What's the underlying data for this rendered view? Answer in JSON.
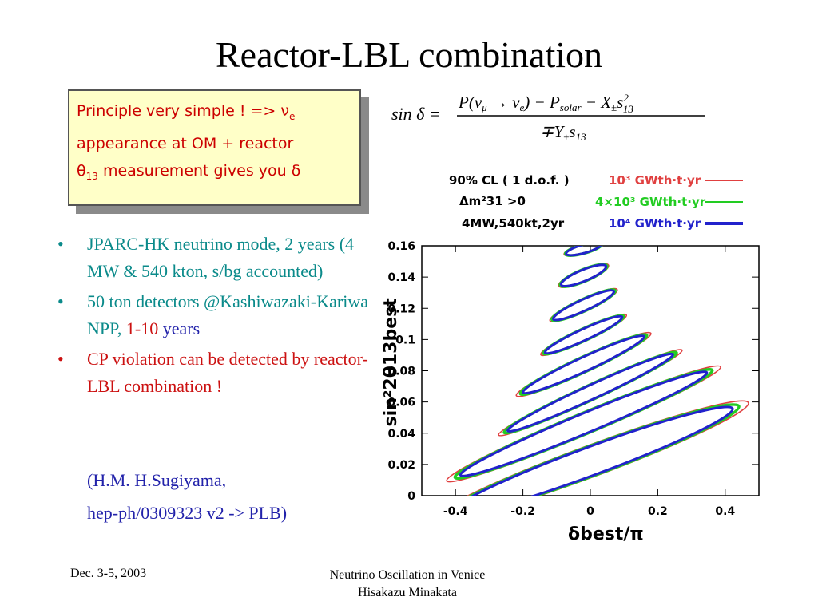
{
  "slide": {
    "title": "Reactor-LBL combination",
    "box": {
      "line1": "Principle very simple ! => ",
      "nu": "ν",
      "nu_sub": "e",
      "line2": "appearance at OM + reactor",
      "theta": "θ",
      "theta_sub": "13",
      "line3": " measurement gives you δ"
    },
    "formula": {
      "lhs": "sin δ =",
      "num": "P(νμ → νe) − Psolar − X±s",
      "den": "∓Y±s"
    },
    "bullets": [
      {
        "dot": "•",
        "text": "JPARC-HK neutrino mode, 2 years (4 MW & 540 kton, s/bg accounted)"
      },
      {
        "dot": "•",
        "text_a": "50 ton detectors @Kashiwazaki-Kariwa NPP, ",
        "text_b": "1-10",
        "text_c": " years"
      },
      {
        "dot": "•",
        "text": "CP violation can be detected by reactor-LBL combination !"
      }
    ],
    "ref1": "(H.M. H.Sugiyama,",
    "ref2": "hep-ph/0309323 v2 -> PLB)",
    "footer_left": "Dec. 3-5, 2003",
    "footer_right_1": "Neutrino Oscillation in Venice",
    "footer_right_2": "Hisakazu Minakata"
  },
  "chart_data": {
    "type": "scatter",
    "xlabel": "δbest/π",
    "ylabel": "sin²2θ13best",
    "xlim": [
      -0.5,
      0.5
    ],
    "ylim": [
      0,
      0.16
    ],
    "xticks": [
      "-0.4",
      "-0.2",
      "0",
      "0.2",
      "0.4"
    ],
    "yticks": [
      "0",
      "0.02",
      "0.04",
      "0.06",
      "0.08",
      "0.1",
      "0.12",
      "0.14",
      "0.16"
    ],
    "legend_left": [
      "90% CL ( 1 d.o.f. )",
      "Δm²31 >0",
      "4MW,540kt,2yr"
    ],
    "series": [
      {
        "name": "10³ GWth·t·yr",
        "color": "#e04040"
      },
      {
        "name": "4×10³ GWth·t·yr",
        "color": "#22cc22"
      },
      {
        "name": "10⁴ GWth·t·yr",
        "color": "#2222cc"
      }
    ],
    "contours": [
      {
        "cx": 0.0,
        "cy": 0.022,
        "rx": 0.5,
        "ry": 0.01,
        "tilt": 0.016
      },
      {
        "cx": -0.02,
        "cy": 0.046,
        "rx": 0.44,
        "ry": 0.007,
        "tilt": 0.018
      },
      {
        "cx": 0.0,
        "cy": 0.066,
        "rx": 0.3,
        "ry": 0.005,
        "tilt": 0.02
      },
      {
        "cx": -0.02,
        "cy": 0.084,
        "rx": 0.22,
        "ry": 0.005,
        "tilt": 0.02
      },
      {
        "cx": -0.02,
        "cy": 0.103,
        "rx": 0.14,
        "ry": 0.004,
        "tilt": 0.02
      },
      {
        "cx": -0.02,
        "cy": 0.122,
        "rx": 0.11,
        "ry": 0.004,
        "tilt": 0.02
      },
      {
        "cx": -0.02,
        "cy": 0.141,
        "rx": 0.08,
        "ry": 0.004,
        "tilt": 0.018
      },
      {
        "cx": -0.02,
        "cy": 0.158,
        "rx": 0.06,
        "ry": 0.003,
        "tilt": 0.012
      }
    ]
  }
}
